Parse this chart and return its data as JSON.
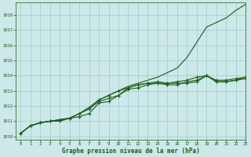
{
  "title": "Graphe pression niveau de la mer (hPa)",
  "bg_color": "#cce8e8",
  "grid_color": "#99cccc",
  "line_color": "#1a5c1a",
  "marker_color": "#1a5c1a",
  "xlim": [
    -0.5,
    23
  ],
  "ylim": [
    1009.8,
    1018.8
  ],
  "yticks": [
    1010,
    1011,
    1012,
    1013,
    1014,
    1015,
    1016,
    1017,
    1018
  ],
  "xticks": [
    0,
    1,
    2,
    3,
    4,
    5,
    6,
    7,
    8,
    9,
    10,
    11,
    12,
    13,
    14,
    15,
    16,
    17,
    18,
    19,
    20,
    21,
    22,
    23
  ],
  "series": [
    [
      1010.2,
      1010.7,
      1010.9,
      1011.0,
      1011.1,
      1011.2,
      1011.5,
      1011.9,
      1012.4,
      1012.7,
      1013.0,
      1013.3,
      1013.5,
      1013.7,
      1013.9,
      1014.2,
      1014.5,
      1015.2,
      1016.2,
      1017.2,
      1017.5,
      1017.8,
      1018.3,
      1018.7
    ],
    [
      1010.2,
      1010.7,
      1010.9,
      1011.0,
      1011.1,
      1011.2,
      1011.5,
      1011.9,
      1012.4,
      1012.7,
      1013.0,
      1013.2,
      1013.4,
      1013.5,
      1013.6,
      1013.5,
      1013.5,
      1013.5,
      1013.6,
      1014.0,
      1013.6,
      1013.6,
      1013.7,
      1013.9
    ],
    [
      1010.2,
      1010.7,
      1010.9,
      1011.0,
      1011.1,
      1011.2,
      1011.5,
      1011.8,
      1012.3,
      1012.5,
      1012.7,
      1013.1,
      1013.2,
      1013.4,
      1013.5,
      1013.5,
      1013.6,
      1013.7,
      1013.9,
      1014.0,
      1013.7,
      1013.7,
      1013.8,
      1013.9
    ],
    [
      1010.2,
      1010.7,
      1010.9,
      1011.0,
      1011.0,
      1011.2,
      1011.3,
      1011.5,
      1012.2,
      1012.3,
      1012.7,
      1013.2,
      1013.4,
      1013.5,
      1013.5,
      1013.4,
      1013.4,
      1013.6,
      1013.7,
      1014.0,
      1013.6,
      1013.6,
      1013.7,
      1013.8
    ]
  ]
}
